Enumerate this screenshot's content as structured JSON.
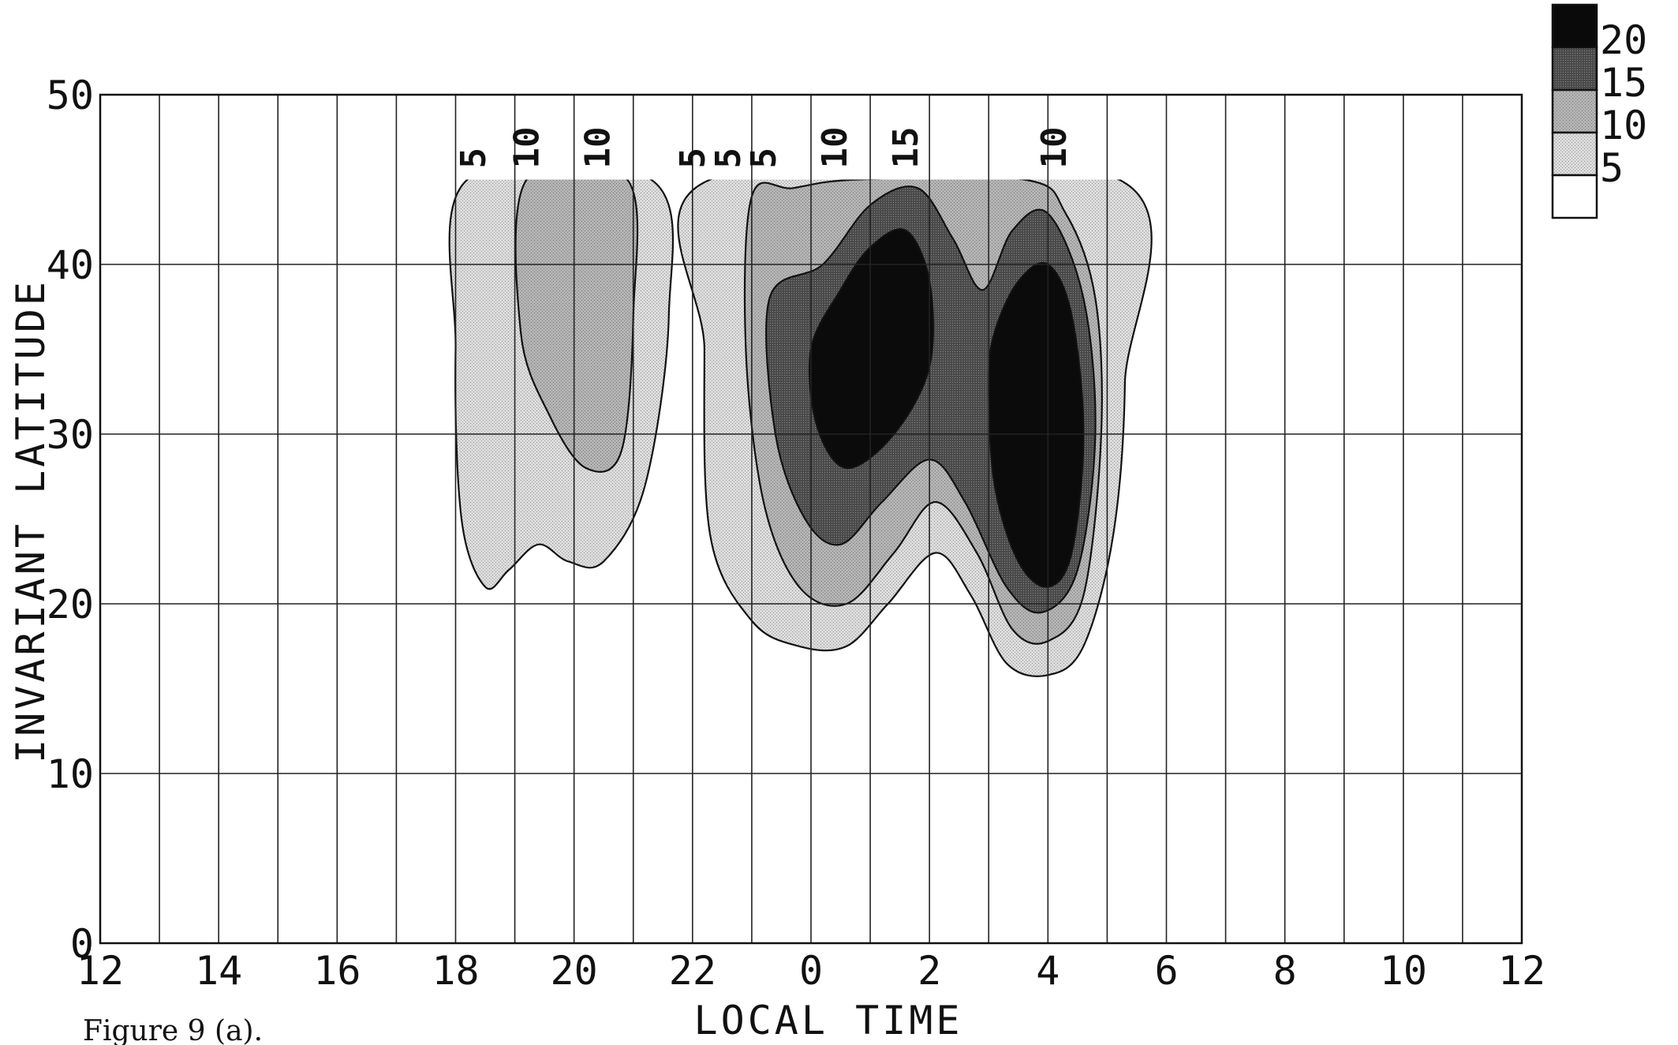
{
  "caption": "Figure 9 (a).",
  "chart_data": {
    "type": "heatmap",
    "title": "",
    "xlabel": "LOCAL TIME",
    "ylabel": "INVARIANT LATITUDE",
    "x_tick_labels": [
      "12",
      "14",
      "16",
      "18",
      "20",
      "22",
      "0",
      "2",
      "4",
      "6",
      "8",
      "10",
      "12"
    ],
    "y_tick_labels": [
      "0",
      "10",
      "20",
      "30",
      "40",
      "50"
    ],
    "xlim": [
      12,
      36
    ],
    "ylim": [
      0,
      50
    ],
    "grid": true,
    "legend": {
      "position": "top-right",
      "levels": [
        "20",
        "15",
        "10",
        "5"
      ],
      "colors": [
        "#0a0a0a",
        "#555555",
        "#a3a3a3",
        "#d2d2d2",
        "#ffffff"
      ]
    },
    "contour_levels": [
      5,
      10,
      15,
      20
    ],
    "contour_labels": [
      {
        "text": "5",
        "x": 18.5
      },
      {
        "text": "10",
        "x": 19.4
      },
      {
        "text": "10",
        "x": 20.6
      },
      {
        "text": "5",
        "x": 22.2
      },
      {
        "text": "5",
        "x": 22.8
      },
      {
        "text": "5",
        "x": 23.4
      },
      {
        "text": "10",
        "x": 24.6
      },
      {
        "text": "15",
        "x": 25.8
      },
      {
        "text": "10",
        "x": 28.3
      }
    ],
    "regions": [
      {
        "level": 5,
        "points": [
          [
            18.2,
            45
          ],
          [
            18.0,
            35
          ],
          [
            18.1,
            25
          ],
          [
            18.5,
            21
          ],
          [
            18.9,
            22
          ],
          [
            19.4,
            23.5
          ],
          [
            19.9,
            22.5
          ],
          [
            20.5,
            22.5
          ],
          [
            21.2,
            27
          ],
          [
            21.6,
            37
          ],
          [
            21.3,
            45
          ]
        ]
      },
      {
        "level": 10,
        "points": [
          [
            19.2,
            45
          ],
          [
            19.1,
            36
          ],
          [
            19.6,
            31
          ],
          [
            20.2,
            28
          ],
          [
            20.8,
            29
          ],
          [
            21.0,
            37
          ],
          [
            20.9,
            45
          ]
        ]
      },
      {
        "level": 5,
        "points": [
          [
            22.3,
            45
          ],
          [
            22.2,
            35
          ],
          [
            22.3,
            24
          ],
          [
            23.0,
            19
          ],
          [
            23.8,
            17.5
          ],
          [
            24.6,
            17.5
          ],
          [
            25.3,
            20
          ],
          [
            26.1,
            23
          ],
          [
            26.7,
            20.5
          ],
          [
            27.3,
            16.5
          ],
          [
            28.0,
            15.8
          ],
          [
            28.6,
            17.5
          ],
          [
            29.1,
            24
          ],
          [
            29.3,
            33
          ],
          [
            29.2,
            45
          ]
        ]
      },
      {
        "level": 10,
        "points": [
          [
            23.0,
            44
          ],
          [
            22.9,
            35
          ],
          [
            23.2,
            26
          ],
          [
            23.8,
            21
          ],
          [
            24.6,
            20
          ],
          [
            25.4,
            23
          ],
          [
            26.1,
            26
          ],
          [
            26.8,
            23
          ],
          [
            27.4,
            18.5
          ],
          [
            28.0,
            17.8
          ],
          [
            28.6,
            20.5
          ],
          [
            28.9,
            30
          ],
          [
            28.8,
            38
          ],
          [
            28.3,
            43
          ],
          [
            27.6,
            45
          ],
          [
            24.8,
            45
          ],
          [
            23.7,
            44.5
          ]
        ]
      },
      {
        "level": 15,
        "points": [
          [
            23.3,
            38
          ],
          [
            23.4,
            30
          ],
          [
            23.9,
            25
          ],
          [
            24.5,
            23.5
          ],
          [
            25.2,
            26
          ],
          [
            26.0,
            28.5
          ],
          [
            26.6,
            26
          ],
          [
            27.3,
            21
          ],
          [
            27.9,
            19.5
          ],
          [
            28.5,
            22
          ],
          [
            28.8,
            30
          ],
          [
            28.6,
            38
          ],
          [
            28.0,
            43
          ],
          [
            27.4,
            42
          ],
          [
            26.9,
            38.5
          ],
          [
            26.4,
            41.5
          ],
          [
            25.8,
            44.5
          ],
          [
            25.0,
            43.5
          ],
          [
            24.2,
            40
          ]
        ]
      },
      {
        "level": 20,
        "points": [
          [
            24.0,
            35
          ],
          [
            24.1,
            30.5
          ],
          [
            24.6,
            28
          ],
          [
            25.4,
            30
          ],
          [
            26.0,
            34
          ],
          [
            26.0,
            39
          ],
          [
            25.6,
            42
          ],
          [
            25.0,
            41
          ],
          [
            24.5,
            38.5
          ]
        ]
      },
      {
        "level": 20,
        "points": [
          [
            27.0,
            33
          ],
          [
            27.1,
            27
          ],
          [
            27.5,
            22.5
          ],
          [
            28.0,
            21
          ],
          [
            28.4,
            23
          ],
          [
            28.6,
            30
          ],
          [
            28.4,
            37
          ],
          [
            28.0,
            40
          ],
          [
            27.5,
            39
          ],
          [
            27.1,
            36
          ]
        ]
      }
    ]
  }
}
